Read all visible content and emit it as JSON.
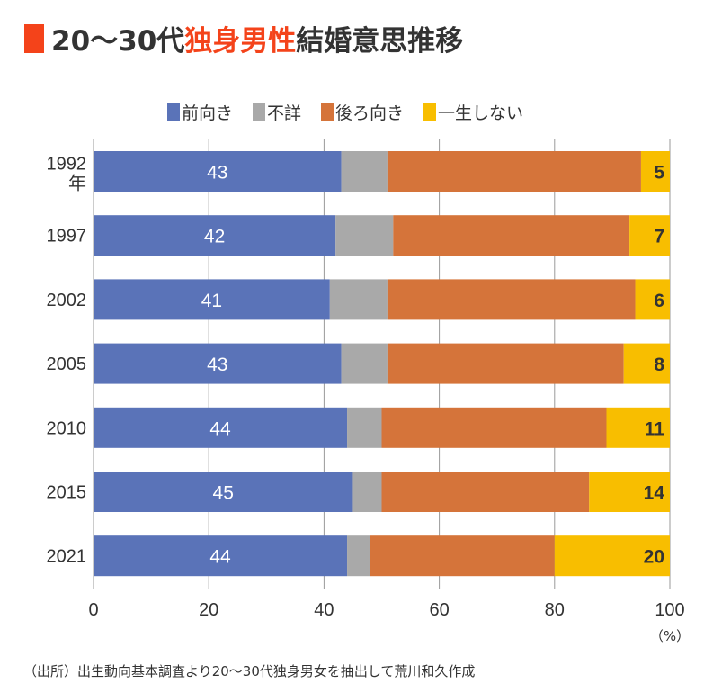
{
  "title": {
    "prefix": "20〜30代",
    "accent": "独身男性",
    "suffix": "結婚意思推移"
  },
  "footer": "（出所）出生動向基本調査より20〜30代独身男女を抽出して荒川和久作成",
  "chart_data": {
    "type": "bar",
    "orientation": "horizontal-stacked",
    "categories": [
      "1992年",
      "1997",
      "2002",
      "2005",
      "2010",
      "2015",
      "2021"
    ],
    "category_labels": [
      [
        "1992",
        "年"
      ],
      [
        "1997"
      ],
      [
        "2002"
      ],
      [
        "2005"
      ],
      [
        "2010"
      ],
      [
        "2015"
      ],
      [
        "2021"
      ]
    ],
    "series": [
      {
        "name": "前向き",
        "color": "#5a73b8",
        "values": [
          43,
          42,
          41,
          43,
          44,
          45,
          44
        ],
        "labeled": true
      },
      {
        "name": "不詳",
        "color": "#a9a9a9",
        "values": [
          8,
          10,
          10,
          8,
          6,
          5,
          4
        ],
        "labeled": false
      },
      {
        "name": "後ろ向き",
        "color": "#d5743a",
        "values": [
          44,
          41,
          43,
          41,
          39,
          36,
          32
        ],
        "labeled": false
      },
      {
        "name": "一生しない",
        "color": "#f8be00",
        "values": [
          5,
          7,
          6,
          8,
          11,
          14,
          20
        ],
        "labeled": true
      }
    ],
    "xlim": [
      0,
      100
    ],
    "xticks": [
      "0",
      "20",
      "40",
      "60",
      "80",
      "100"
    ],
    "xunit": "（%）",
    "grid": true,
    "legend": "top"
  }
}
